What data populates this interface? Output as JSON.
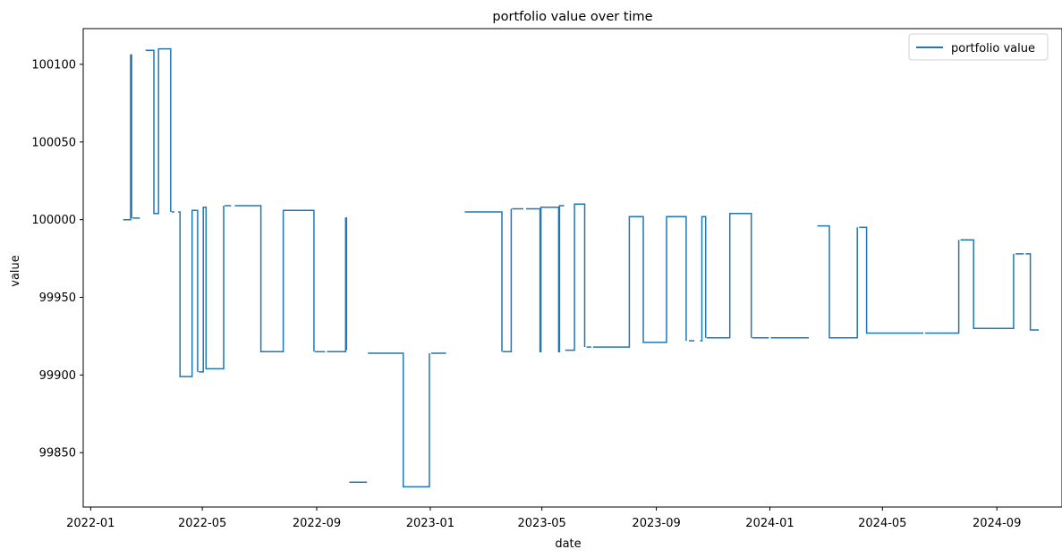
{
  "chart_data": {
    "type": "line",
    "title": "portfolio value over time",
    "xlabel": "date",
    "ylabel": "value",
    "xlim": [
      "2021-12-24",
      "2024-11-10"
    ],
    "ylim": [
      99815,
      100123
    ],
    "x_ticks": [
      "2022-01",
      "2022-05",
      "2022-09",
      "2023-01",
      "2023-05",
      "2023-09",
      "2024-01",
      "2024-05",
      "2024-09"
    ],
    "y_ticks": [
      99850,
      99900,
      99950,
      100000,
      100050,
      100100
    ],
    "legend": {
      "position": "top-right",
      "entries": [
        "portfolio value"
      ]
    },
    "grid": false,
    "series": [
      {
        "name": "portfolio value",
        "color": "#1f77b4",
        "segments": [
          [
            [
              "2022-02-05",
              100000
            ],
            [
              "2022-02-13",
              100000
            ],
            [
              "2022-02-13",
              100106
            ],
            [
              "2022-02-14",
              100106
            ],
            [
              "2022-02-14",
              100001
            ]
          ],
          [
            [
              "2022-02-15",
              100001
            ],
            [
              "2022-02-23",
              100001
            ]
          ],
          [
            [
              "2022-03-01",
              100109
            ],
            [
              "2022-03-10",
              100109
            ],
            [
              "2022-03-10",
              100004
            ],
            [
              "2022-03-15",
              100004
            ],
            [
              "2022-03-15",
              100110
            ],
            [
              "2022-03-28",
              100110
            ],
            [
              "2022-03-28",
              100005
            ]
          ],
          [
            [
              "2022-03-29",
              100005
            ],
            [
              "2022-04-01",
              100005
            ]
          ],
          [
            [
              "2022-04-05",
              100005
            ],
            [
              "2022-04-07",
              100005
            ],
            [
              "2022-04-07",
              99899
            ],
            [
              "2022-04-20",
              99899
            ],
            [
              "2022-04-20",
              100006
            ],
            [
              "2022-04-26",
              100006
            ],
            [
              "2022-04-26",
              99902
            ]
          ],
          [
            [
              "2022-04-27",
              99902
            ],
            [
              "2022-05-02",
              99902
            ],
            [
              "2022-05-02",
              100008
            ],
            [
              "2022-05-05",
              100008
            ],
            [
              "2022-05-05",
              99904
            ],
            [
              "2022-05-24",
              99904
            ],
            [
              "2022-05-24",
              100009
            ]
          ],
          [
            [
              "2022-05-25",
              100009
            ],
            [
              "2022-06-01",
              100009
            ]
          ],
          [
            [
              "2022-06-05",
              100009
            ],
            [
              "2022-07-03",
              100009
            ],
            [
              "2022-07-03",
              99915
            ],
            [
              "2022-07-27",
              99915
            ],
            [
              "2022-07-27",
              100006
            ],
            [
              "2022-08-29",
              100006
            ],
            [
              "2022-08-29",
              99915
            ]
          ],
          [
            [
              "2022-08-30",
              99915
            ],
            [
              "2022-09-10",
              99915
            ]
          ],
          [
            [
              "2022-09-12",
              99915
            ],
            [
              "2022-10-02",
              99915
            ],
            [
              "2022-10-02",
              100001
            ],
            [
              "2022-10-03",
              100001
            ],
            [
              "2022-10-03",
              99916
            ]
          ],
          [
            [
              "2022-10-06",
              99831
            ],
            [
              "2022-10-25",
              99831
            ]
          ],
          [
            [
              "2022-10-26",
              99914
            ],
            [
              "2022-12-03",
              99914
            ],
            [
              "2022-12-03",
              99828
            ],
            [
              "2022-12-31",
              99828
            ],
            [
              "2022-12-31",
              99914
            ]
          ],
          [
            [
              "2023-01-02",
              99914
            ],
            [
              "2023-01-18",
              99914
            ]
          ],
          [
            [
              "2023-02-07",
              100005
            ],
            [
              "2023-03-19",
              100005
            ],
            [
              "2023-03-19",
              99915
            ]
          ],
          [
            [
              "2023-03-20",
              99915
            ],
            [
              "2023-03-29",
              99915
            ],
            [
              "2023-03-29",
              100007
            ]
          ],
          [
            [
              "2023-03-30",
              100007
            ],
            [
              "2023-04-11",
              100007
            ]
          ],
          [
            [
              "2023-04-14",
              100007
            ],
            [
              "2023-04-29",
              100007
            ],
            [
              "2023-04-29",
              99915
            ],
            [
              "2023-04-30",
              99915
            ],
            [
              "2023-04-30",
              100008
            ],
            [
              "2023-05-19",
              100008
            ],
            [
              "2023-05-19",
              99915
            ],
            [
              "2023-05-20",
              99915
            ],
            [
              "2023-05-20",
              100009
            ],
            [
              "2023-05-25",
              100009
            ]
          ],
          [
            [
              "2023-05-26",
              99916
            ],
            [
              "2023-06-05",
              99916
            ],
            [
              "2023-06-05",
              100010
            ],
            [
              "2023-06-16",
              100010
            ],
            [
              "2023-06-16",
              99918
            ]
          ],
          [
            [
              "2023-06-18",
              99918
            ],
            [
              "2023-06-23",
              99918
            ]
          ],
          [
            [
              "2023-06-25",
              99918
            ],
            [
              "2023-08-03",
              99918
            ],
            [
              "2023-08-03",
              100002
            ],
            [
              "2023-08-18",
              100002
            ],
            [
              "2023-08-18",
              99921
            ],
            [
              "2023-09-12",
              99921
            ],
            [
              "2023-09-12",
              100002
            ],
            [
              "2023-10-03",
              100002
            ],
            [
              "2023-10-03",
              99922
            ]
          ],
          [
            [
              "2023-10-06",
              99922
            ],
            [
              "2023-10-12",
              99922
            ]
          ],
          [
            [
              "2023-10-18",
              99922
            ],
            [
              "2023-10-20",
              99922
            ],
            [
              "2023-10-20",
              100002
            ],
            [
              "2023-10-24",
              100002
            ],
            [
              "2023-10-24",
              99924
            ]
          ],
          [
            [
              "2023-10-25",
              99924
            ],
            [
              "2023-11-19",
              99924
            ],
            [
              "2023-11-19",
              100004
            ],
            [
              "2023-12-12",
              100004
            ],
            [
              "2023-12-12",
              99924
            ]
          ],
          [
            [
              "2023-12-13",
              99924
            ],
            [
              "2023-12-31",
              99924
            ]
          ],
          [
            [
              "2024-01-02",
              99924
            ],
            [
              "2024-02-12",
              99924
            ]
          ],
          [
            [
              "2024-02-21",
              99996
            ],
            [
              "2024-03-05",
              99996
            ],
            [
              "2024-03-05",
              99924
            ],
            [
              "2024-04-04",
              99924
            ],
            [
              "2024-04-04",
              99995
            ]
          ],
          [
            [
              "2024-04-06",
              99995
            ],
            [
              "2024-04-14",
              99995
            ],
            [
              "2024-04-14",
              99927
            ],
            [
              "2024-06-14",
              99927
            ]
          ],
          [
            [
              "2024-06-16",
              99927
            ],
            [
              "2024-07-22",
              99927
            ],
            [
              "2024-07-22",
              99987
            ]
          ],
          [
            [
              "2024-07-24",
              99987
            ],
            [
              "2024-08-07",
              99987
            ],
            [
              "2024-08-07",
              99930
            ],
            [
              "2024-09-19",
              99930
            ],
            [
              "2024-09-19",
              99978
            ]
          ],
          [
            [
              "2024-09-21",
              99978
            ],
            [
              "2024-09-30",
              99978
            ]
          ],
          [
            [
              "2024-10-02",
              99978
            ],
            [
              "2024-10-07",
              99978
            ],
            [
              "2024-10-07",
              99929
            ],
            [
              "2024-10-16",
              99929
            ]
          ]
        ]
      }
    ]
  }
}
